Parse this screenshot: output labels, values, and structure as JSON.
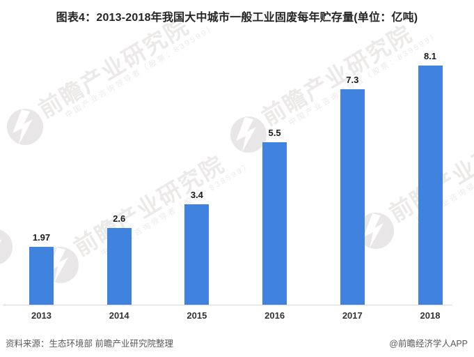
{
  "header": {
    "title": "图表4：2013-2018年我国大中城市一般工业固废每年贮存量(单位：亿吨)"
  },
  "chart_data": {
    "type": "bar",
    "title": "图表4：2013-2018年我国大中城市一般工业固废每年贮存量(单位：亿吨)",
    "categories": [
      "2013",
      "2014",
      "2015",
      "2016",
      "2017",
      "2018"
    ],
    "values": [
      1.97,
      2.6,
      3.4,
      5.5,
      7.3,
      8.1
    ],
    "value_labels": [
      "1.97",
      "2.6",
      "3.4",
      "5.5",
      "7.3",
      "8.1"
    ],
    "unit": "亿吨",
    "xlabel": "",
    "ylabel": "",
    "ylim": [
      0,
      9
    ],
    "grid": false,
    "legend": false,
    "bar_color": "#3f83de",
    "axis_line_color": "#d9d9d9"
  },
  "watermark": {
    "main": "前瞻产业研究院",
    "sub": "中国产业咨询领导者（股票：839599）"
  },
  "footer": {
    "source": "资料来源：生态环境部 前瞻产业研究院整理",
    "credit": "@前瞻经济学人APP"
  }
}
